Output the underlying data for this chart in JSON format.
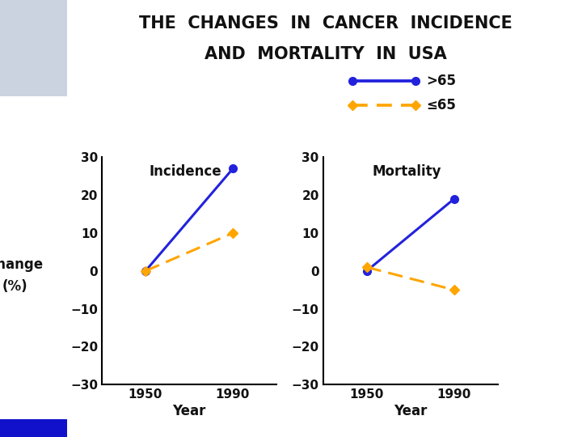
{
  "title_line1": "THE  CHANGES  IN  CANCER  INCIDENCE",
  "title_line2": "AND  MORTALITY  IN  USA",
  "title_fontsize": 15,
  "title_color": "#111111",
  "background_color": "#ffffff",
  "panel_bg": "#ffffff",
  "years": [
    1950,
    1990
  ],
  "incidence": {
    "title": "Incidence",
    "over65": [
      0,
      27
    ],
    "under65": [
      0,
      10
    ]
  },
  "mortality": {
    "title": "Mortality",
    "over65": [
      0,
      19
    ],
    "under65": [
      1,
      -5
    ]
  },
  "color_over65": "#2222dd",
  "color_under65": "#FFA500",
  "ylim": [
    -30,
    30
  ],
  "yticks": [
    -30,
    -20,
    -10,
    0,
    10,
    20,
    30
  ],
  "ytick_labels": [
    "−30",
    "−20",
    "−10",
    "0",
    "10",
    "20",
    "30"
  ],
  "xlabel": "Year",
  "ylabel_line1": "Change",
  "ylabel_line2": "(%)",
  "legend_over65": ">65",
  "legend_under65": "≤65",
  "marker_size": 7,
  "linewidth": 2.2,
  "bg_rect_color": "#ccd3e0",
  "blue_bar_color": "#1111cc"
}
